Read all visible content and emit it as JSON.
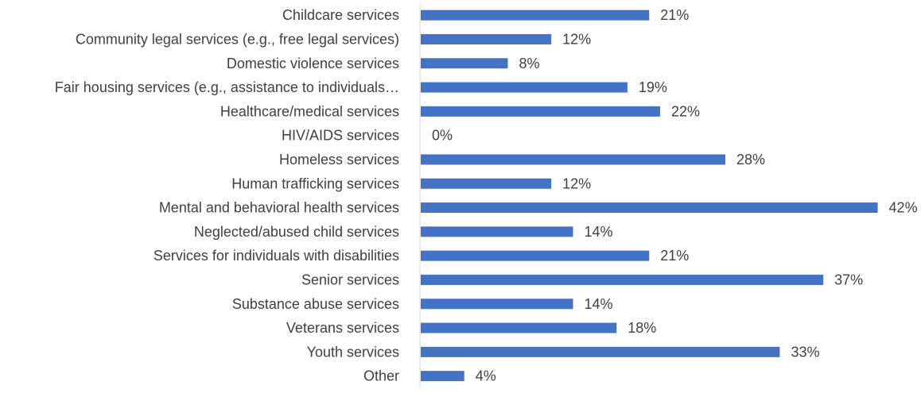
{
  "chart_data": {
    "type": "bar",
    "orientation": "horizontal",
    "categories": [
      "Childcare services",
      "Community legal services (e.g., free legal services)",
      "Domestic violence services",
      "Fair housing services (e.g., assistance to individuals…",
      "Healthcare/medical services",
      "HIV/AIDS services",
      "Homeless services",
      "Human trafficking services",
      "Mental and behavioral health services",
      "Neglected/abused child services",
      "Services for individuals with disabilities",
      "Senior services",
      "Substance abuse services",
      "Veterans services",
      "Youth services",
      "Other"
    ],
    "values": [
      21,
      12,
      8,
      19,
      22,
      0,
      28,
      12,
      42,
      14,
      21,
      37,
      14,
      18,
      33,
      4
    ],
    "value_labels": [
      "21%",
      "12%",
      "8%",
      "19%",
      "22%",
      "0%",
      "28%",
      "12%",
      "42%",
      "14%",
      "21%",
      "37%",
      "14%",
      "18%",
      "33%",
      "4%"
    ],
    "unit": "%",
    "xlim": [
      0,
      45
    ],
    "grid": false,
    "legend": "none",
    "colors": {
      "bar": "#4472C4",
      "axis": "#D9D9D9",
      "text": "#404040"
    }
  }
}
